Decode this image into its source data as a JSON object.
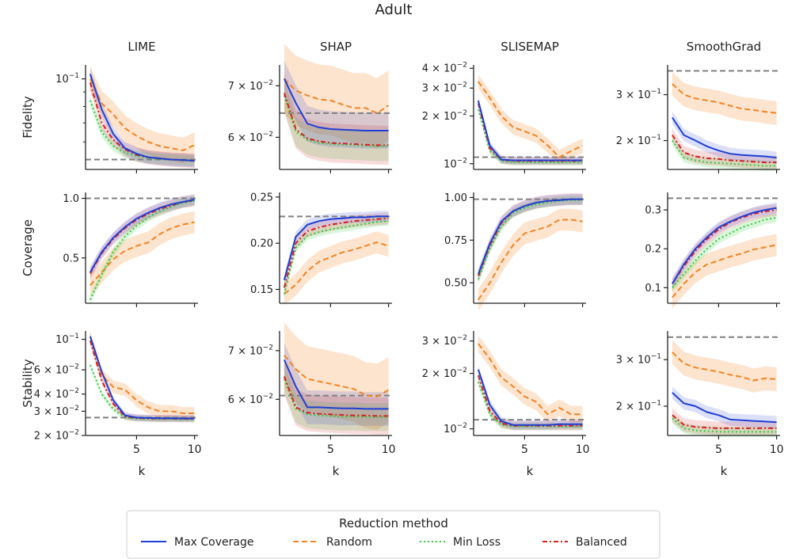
{
  "figure_title": "Adult",
  "colors": {
    "max_coverage": "#1f3fd4",
    "random": "#f58220",
    "min_loss": "#2ecc3a",
    "balanced": "#d61f1f",
    "reference": "#808080",
    "axis": "#222222"
  },
  "legend": {
    "title": "Reduction method",
    "items": [
      {
        "name": "Max Coverage",
        "key": "max_coverage",
        "dash": "solid"
      },
      {
        "name": "Random",
        "key": "random",
        "dash": "dashed"
      },
      {
        "name": "Min Loss",
        "key": "min_loss",
        "dash": "dotted"
      },
      {
        "name": "Balanced",
        "key": "balanced",
        "dash": "dashdot"
      }
    ]
  },
  "chart_data": {
    "type": "line",
    "title": "Adult",
    "columns": [
      "LIME",
      "SHAP",
      "SLISEMAP",
      "SmoothGrad"
    ],
    "rows": [
      "Fidelity",
      "Coverage",
      "Stability"
    ],
    "xlabel": "k",
    "x": [
      1,
      2,
      3,
      4,
      5,
      6,
      7,
      8,
      9,
      10
    ],
    "xticks": [
      5,
      10
    ],
    "xlim": [
      0.6,
      10.3
    ],
    "panels": [
      {
        "id": "lime-fidelity",
        "method": "LIME",
        "metric": "Fidelity",
        "scale": "log",
        "ylim": [
          0.048,
          0.112
        ],
        "reference": 0.052,
        "yticks": [
          {
            "v": 0.1,
            "b": "10",
            "e": "−1",
            "pre": ""
          }
        ],
        "minor": [
          0.06,
          0.07,
          0.08,
          0.09
        ],
        "series": {
          "max_coverage": [
            0.104,
            0.078,
            0.064,
            0.057,
            0.0545,
            0.053,
            0.0525,
            0.052,
            0.0518,
            0.0515
          ],
          "random": [
            0.1,
            0.082,
            0.075,
            0.067,
            0.063,
            0.06,
            0.058,
            0.057,
            0.056,
            0.0585
          ],
          "min_loss": [
            0.084,
            0.065,
            0.058,
            0.055,
            0.0535,
            0.0528,
            0.0522,
            0.052,
            0.0516,
            0.0513
          ],
          "balanced": [
            0.097,
            0.07,
            0.061,
            0.0565,
            0.054,
            0.053,
            0.0524,
            0.052,
            0.0517,
            0.0514
          ]
        }
      },
      {
        "id": "shap-fidelity",
        "method": "SHAP",
        "metric": "Fidelity",
        "scale": "log",
        "ylim": [
          0.0545,
          0.0745
        ],
        "reference": 0.0645,
        "yticks": [
          {
            "v": 0.07,
            "b": "10",
            "e": "−2",
            "pre": "7 × "
          },
          {
            "v": 0.06,
            "b": "10",
            "e": "−2",
            "pre": "6 × "
          }
        ],
        "minor": [],
        "series": {
          "max_coverage": [
            0.0715,
            0.0665,
            0.0625,
            0.0618,
            0.0615,
            0.0614,
            0.0613,
            0.0612,
            0.0612,
            0.0612
          ],
          "random": [
            0.0715,
            0.069,
            0.068,
            0.0672,
            0.067,
            0.0662,
            0.0655,
            0.0655,
            0.0645,
            0.066
          ],
          "min_loss": [
            0.068,
            0.061,
            0.0595,
            0.059,
            0.0588,
            0.0587,
            0.0586,
            0.0585,
            0.0584,
            0.0584
          ],
          "balanced": [
            0.0685,
            0.0615,
            0.0598,
            0.0593,
            0.059,
            0.0589,
            0.0588,
            0.0587,
            0.0586,
            0.0586
          ]
        }
      },
      {
        "id": "slisemap-fidelity",
        "method": "SLISEMAP",
        "metric": "Fidelity",
        "scale": "log",
        "ylim": [
          0.0092,
          0.042
        ],
        "reference": 0.011,
        "yticks": [
          {
            "v": 0.04,
            "b": "10",
            "e": "−2",
            "pre": "4 × "
          },
          {
            "v": 0.03,
            "b": "10",
            "e": "−2",
            "pre": "3 × "
          },
          {
            "v": 0.02,
            "b": "10",
            "e": "−2",
            "pre": "2 × "
          },
          {
            "v": 0.01,
            "b": "10",
            "e": "−2",
            "pre": ""
          }
        ],
        "minor": [],
        "series": {
          "max_coverage": [
            0.025,
            0.013,
            0.0106,
            0.0105,
            0.0105,
            0.0105,
            0.0105,
            0.0105,
            0.0105,
            0.0105
          ],
          "random": [
            0.033,
            0.026,
            0.02,
            0.017,
            0.016,
            0.015,
            0.013,
            0.011,
            0.012,
            0.013
          ],
          "min_loss": [
            0.022,
            0.012,
            0.0104,
            0.0102,
            0.0102,
            0.0102,
            0.0102,
            0.0102,
            0.0102,
            0.0102
          ],
          "balanced": [
            0.024,
            0.0125,
            0.0106,
            0.0104,
            0.0104,
            0.0104,
            0.0104,
            0.0104,
            0.0104,
            0.0104
          ]
        }
      },
      {
        "id": "smoothgrad-fidelity",
        "method": "SmoothGrad",
        "metric": "Fidelity",
        "scale": "log",
        "ylim": [
          0.155,
          0.39
        ],
        "reference": 0.37,
        "yticks": [
          {
            "v": 0.3,
            "b": "10",
            "e": "−1",
            "pre": "3 × "
          },
          {
            "v": 0.2,
            "b": "10",
            "e": "−1",
            "pre": "2 × "
          }
        ],
        "minor": [],
        "series": {
          "max_coverage": [
            0.245,
            0.21,
            0.2,
            0.19,
            0.183,
            0.178,
            0.176,
            0.175,
            0.174,
            0.172
          ],
          "random": [
            0.33,
            0.3,
            0.29,
            0.285,
            0.28,
            0.272,
            0.265,
            0.262,
            0.258,
            0.255
          ],
          "min_loss": [
            0.2,
            0.172,
            0.168,
            0.165,
            0.164,
            0.163,
            0.162,
            0.161,
            0.16,
            0.16
          ],
          "balanced": [
            0.21,
            0.18,
            0.174,
            0.171,
            0.17,
            0.168,
            0.167,
            0.166,
            0.165,
            0.165
          ]
        }
      },
      {
        "id": "lime-coverage",
        "method": "LIME",
        "metric": "Coverage",
        "scale": "linear",
        "ylim": [
          0.12,
          1.05
        ],
        "reference": 1.0,
        "yticks": [
          {
            "v": 0.5,
            "t": "0.5"
          },
          {
            "v": 1.0,
            "t": "1.0"
          }
        ],
        "minor": [],
        "series": {
          "max_coverage": [
            0.38,
            0.55,
            0.67,
            0.76,
            0.83,
            0.88,
            0.92,
            0.95,
            0.97,
            0.99
          ],
          "random": [
            0.27,
            0.38,
            0.49,
            0.56,
            0.6,
            0.63,
            0.7,
            0.75,
            0.78,
            0.8
          ],
          "min_loss": [
            0.15,
            0.36,
            0.55,
            0.68,
            0.77,
            0.84,
            0.89,
            0.93,
            0.96,
            0.98
          ],
          "balanced": [
            0.37,
            0.54,
            0.66,
            0.75,
            0.82,
            0.87,
            0.91,
            0.94,
            0.97,
            0.98
          ]
        }
      },
      {
        "id": "shap-coverage",
        "method": "SHAP",
        "metric": "Coverage",
        "scale": "linear",
        "ylim": [
          0.135,
          0.255
        ],
        "reference": 0.229,
        "yticks": [
          {
            "v": 0.15,
            "t": "0.15"
          },
          {
            "v": 0.2,
            "t": "0.20"
          },
          {
            "v": 0.25,
            "t": "0.25"
          }
        ],
        "minor": [],
        "series": {
          "max_coverage": [
            0.16,
            0.207,
            0.22,
            0.224,
            0.226,
            0.227,
            0.228,
            0.228,
            0.229,
            0.229
          ],
          "random": [
            0.145,
            0.155,
            0.17,
            0.18,
            0.185,
            0.19,
            0.193,
            0.197,
            0.201,
            0.197
          ],
          "min_loss": [
            0.145,
            0.195,
            0.208,
            0.212,
            0.215,
            0.217,
            0.219,
            0.221,
            0.223,
            0.224
          ],
          "balanced": [
            0.152,
            0.2,
            0.213,
            0.217,
            0.22,
            0.222,
            0.224,
            0.225,
            0.226,
            0.227
          ]
        }
      },
      {
        "id": "slisemap-coverage",
        "method": "SLISEMAP",
        "metric": "Coverage",
        "scale": "linear",
        "ylim": [
          0.38,
          1.03
        ],
        "reference": 0.99,
        "yticks": [
          {
            "v": 0.5,
            "t": "0.50"
          },
          {
            "v": 0.75,
            "t": "0.75"
          },
          {
            "v": 1.0,
            "t": "1.00"
          }
        ],
        "minor": [],
        "series": {
          "max_coverage": [
            0.55,
            0.73,
            0.86,
            0.92,
            0.95,
            0.97,
            0.98,
            0.985,
            0.99,
            0.99
          ],
          "random": [
            0.4,
            0.5,
            0.62,
            0.72,
            0.79,
            0.81,
            0.83,
            0.87,
            0.87,
            0.86
          ],
          "min_loss": [
            0.52,
            0.7,
            0.83,
            0.91,
            0.94,
            0.96,
            0.97,
            0.98,
            0.985,
            0.985
          ],
          "balanced": [
            0.54,
            0.72,
            0.85,
            0.92,
            0.95,
            0.97,
            0.98,
            0.985,
            0.99,
            0.99
          ]
        }
      },
      {
        "id": "smoothgrad-coverage",
        "method": "SmoothGrad",
        "metric": "Coverage",
        "scale": "linear",
        "ylim": [
          0.06,
          0.345
        ],
        "reference": 0.33,
        "yticks": [
          {
            "v": 0.1,
            "t": "0.1"
          },
          {
            "v": 0.2,
            "t": "0.2"
          },
          {
            "v": 0.3,
            "t": "0.3"
          }
        ],
        "minor": [],
        "series": {
          "max_coverage": [
            0.11,
            0.16,
            0.2,
            0.23,
            0.255,
            0.27,
            0.283,
            0.293,
            0.3,
            0.305
          ],
          "random": [
            0.075,
            0.11,
            0.14,
            0.16,
            0.17,
            0.18,
            0.188,
            0.198,
            0.204,
            0.21
          ],
          "min_loss": [
            0.1,
            0.135,
            0.17,
            0.2,
            0.225,
            0.24,
            0.255,
            0.265,
            0.275,
            0.28
          ],
          "balanced": [
            0.11,
            0.155,
            0.195,
            0.225,
            0.25,
            0.268,
            0.28,
            0.29,
            0.296,
            0.3
          ]
        }
      },
      {
        "id": "lime-stability",
        "method": "LIME",
        "metric": "Stability",
        "scale": "log",
        "ylim": [
          0.02,
          0.115
        ],
        "reference": 0.027,
        "yticks": [
          {
            "v": 0.1,
            "b": "10",
            "e": "−1",
            "pre": ""
          },
          {
            "v": 0.06,
            "b": "10",
            "e": "−2",
            "pre": "6 × "
          },
          {
            "v": 0.04,
            "b": "10",
            "e": "−2",
            "pre": "4 × "
          },
          {
            "v": 0.03,
            "b": "10",
            "e": "−2",
            "pre": "3 × "
          },
          {
            "v": 0.02,
            "b": "10",
            "e": "−2",
            "pre": "2 × "
          }
        ],
        "minor": [],
        "series": {
          "max_coverage": [
            0.105,
            0.058,
            0.036,
            0.028,
            0.027,
            0.0268,
            0.0267,
            0.0267,
            0.0266,
            0.0266
          ],
          "random": [
            0.105,
            0.055,
            0.045,
            0.043,
            0.036,
            0.032,
            0.03,
            0.03,
            0.029,
            0.029
          ],
          "min_loss": [
            0.065,
            0.04,
            0.031,
            0.027,
            0.0265,
            0.0264,
            0.0263,
            0.0263,
            0.0262,
            0.0262
          ],
          "balanced": [
            0.098,
            0.05,
            0.034,
            0.0275,
            0.0268,
            0.0266,
            0.0265,
            0.0265,
            0.0264,
            0.0264
          ]
        }
      },
      {
        "id": "shap-stability",
        "method": "SHAP",
        "metric": "Stability",
        "scale": "log",
        "ylim": [
          0.0535,
          0.0745
        ],
        "reference": 0.0607,
        "yticks": [
          {
            "v": 0.07,
            "b": "10",
            "e": "−2",
            "pre": "7 × "
          },
          {
            "v": 0.06,
            "b": "10",
            "e": "−2",
            "pre": "6 × "
          }
        ],
        "minor": [],
        "series": {
          "max_coverage": [
            0.068,
            0.0625,
            0.0585,
            0.0585,
            0.0584,
            0.0583,
            0.0583,
            0.0582,
            0.0582,
            0.0582
          ],
          "random": [
            0.069,
            0.066,
            0.064,
            0.0635,
            0.063,
            0.0625,
            0.062,
            0.0608,
            0.0605,
            0.0618
          ],
          "min_loss": [
            0.064,
            0.0582,
            0.0572,
            0.057,
            0.0569,
            0.0568,
            0.0568,
            0.0567,
            0.0567,
            0.0567
          ],
          "balanced": [
            0.0645,
            0.0585,
            0.0575,
            0.0573,
            0.0572,
            0.0571,
            0.057,
            0.057,
            0.0569,
            0.0569
          ]
        }
      },
      {
        "id": "slisemap-stability",
        "method": "SLISEMAP",
        "metric": "Stability",
        "scale": "log",
        "ylim": [
          0.0092,
          0.034
        ],
        "reference": 0.0112,
        "yticks": [
          {
            "v": 0.03,
            "b": "10",
            "e": "−2",
            "pre": "3 × "
          },
          {
            "v": 0.02,
            "b": "10",
            "e": "−2",
            "pre": "2 × "
          },
          {
            "v": 0.01,
            "b": "10",
            "e": "−2",
            "pre": ""
          }
        ],
        "minor": [],
        "series": {
          "max_coverage": [
            0.021,
            0.0135,
            0.011,
            0.0105,
            0.0105,
            0.0105,
            0.0105,
            0.0106,
            0.0106,
            0.0106
          ],
          "random": [
            0.029,
            0.024,
            0.019,
            0.017,
            0.015,
            0.014,
            0.012,
            0.013,
            0.012,
            0.012
          ],
          "min_loss": [
            0.018,
            0.012,
            0.0105,
            0.0103,
            0.0103,
            0.0103,
            0.0103,
            0.0103,
            0.0103,
            0.0103
          ],
          "balanced": [
            0.0195,
            0.0125,
            0.0107,
            0.0104,
            0.0104,
            0.0104,
            0.0104,
            0.0104,
            0.0104,
            0.0104
          ]
        }
      },
      {
        "id": "smoothgrad-stability",
        "method": "SmoothGrad",
        "metric": "Stability",
        "scale": "log",
        "ylim": [
          0.155,
          0.385
        ],
        "reference": 0.365,
        "yticks": [
          {
            "v": 0.3,
            "b": "10",
            "e": "−1",
            "pre": "3 × "
          },
          {
            "v": 0.2,
            "b": "10",
            "e": "−1",
            "pre": "2 × "
          }
        ],
        "minor": [],
        "series": {
          "max_coverage": [
            0.225,
            0.205,
            0.2,
            0.19,
            0.185,
            0.178,
            0.177,
            0.176,
            0.175,
            0.174
          ],
          "random": [
            0.32,
            0.29,
            0.28,
            0.275,
            0.27,
            0.263,
            0.258,
            0.25,
            0.255,
            0.253
          ],
          "min_loss": [
            0.18,
            0.165,
            0.162,
            0.161,
            0.16,
            0.16,
            0.16,
            0.16,
            0.16,
            0.16
          ],
          "balanced": [
            0.185,
            0.17,
            0.167,
            0.166,
            0.165,
            0.165,
            0.165,
            0.165,
            0.165,
            0.165
          ]
        }
      }
    ]
  }
}
